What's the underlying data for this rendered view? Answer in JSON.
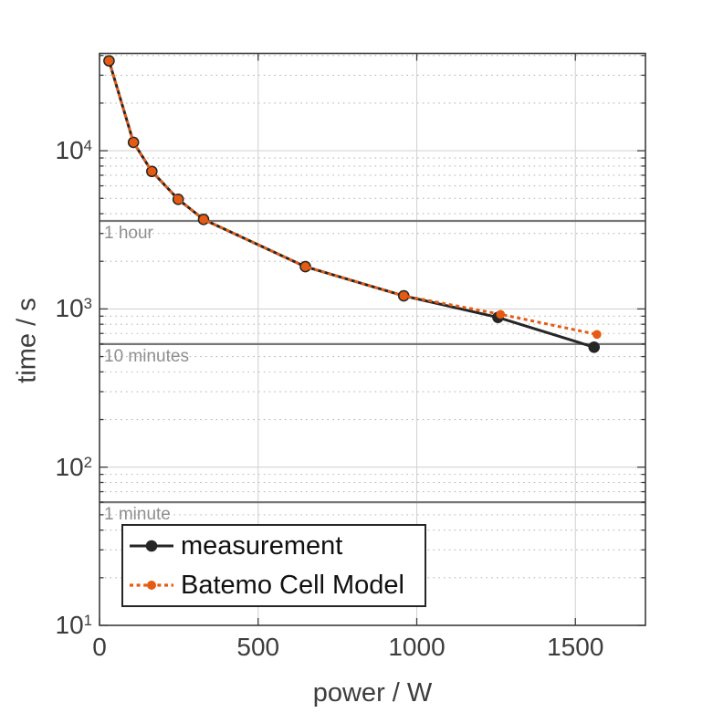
{
  "figure": {
    "background": "#ffffff"
  },
  "chart_data": {
    "type": "line",
    "title": "",
    "xlabel": "power / W",
    "ylabel": "time / s",
    "x_scale": "linear",
    "y_scale": "log10",
    "xlim": [
      0,
      1720
    ],
    "ylim": [
      10,
      41000
    ],
    "x_ticks": [
      0,
      500,
      1000,
      1500
    ],
    "y_tick_exponents": [
      1,
      2,
      3,
      4
    ],
    "grid": {
      "major": true,
      "minor_dotted": true
    },
    "legend_position": "bottom-left",
    "series": [
      {
        "name": "measurement",
        "color": "#262626",
        "line_style": "solid",
        "line_width": 3,
        "marker": "circle",
        "marker_radius": 6.3,
        "points": [
          [
            30,
            37000
          ],
          [
            107,
            11300
          ],
          [
            165,
            7400
          ],
          [
            248,
            4930
          ],
          [
            328,
            3680
          ],
          [
            649,
            1850
          ],
          [
            959,
            1210
          ],
          [
            1256,
            884
          ],
          [
            1559,
            573
          ]
        ]
      },
      {
        "name": "Batemo Cell Model",
        "color": "#e55b13",
        "line_style": "dotted",
        "line_width": 3,
        "marker": "circle",
        "marker_radius": 4.8,
        "points": [
          [
            30,
            37000
          ],
          [
            107,
            11300
          ],
          [
            165,
            7400
          ],
          [
            248,
            4930
          ],
          [
            328,
            3680
          ],
          [
            649,
            1850
          ],
          [
            959,
            1210
          ],
          [
            1264,
            925
          ],
          [
            1568,
            690
          ]
        ]
      }
    ],
    "reference_lines": [
      {
        "label": "1 hour",
        "seconds": 3600
      },
      {
        "label": "10 minutes",
        "seconds": 600
      },
      {
        "label": "1 minute",
        "seconds": 60
      }
    ]
  },
  "colors": {
    "axis": "#3d3d3d",
    "tick_label": "#3d3d3d",
    "grid_major": "#d4d4d4",
    "grid_minor": "#b9b9b9",
    "reference_line": "#777777",
    "reference_label": "#8f8f8f",
    "legend_border": "#262626",
    "legend_text": "#111111"
  }
}
